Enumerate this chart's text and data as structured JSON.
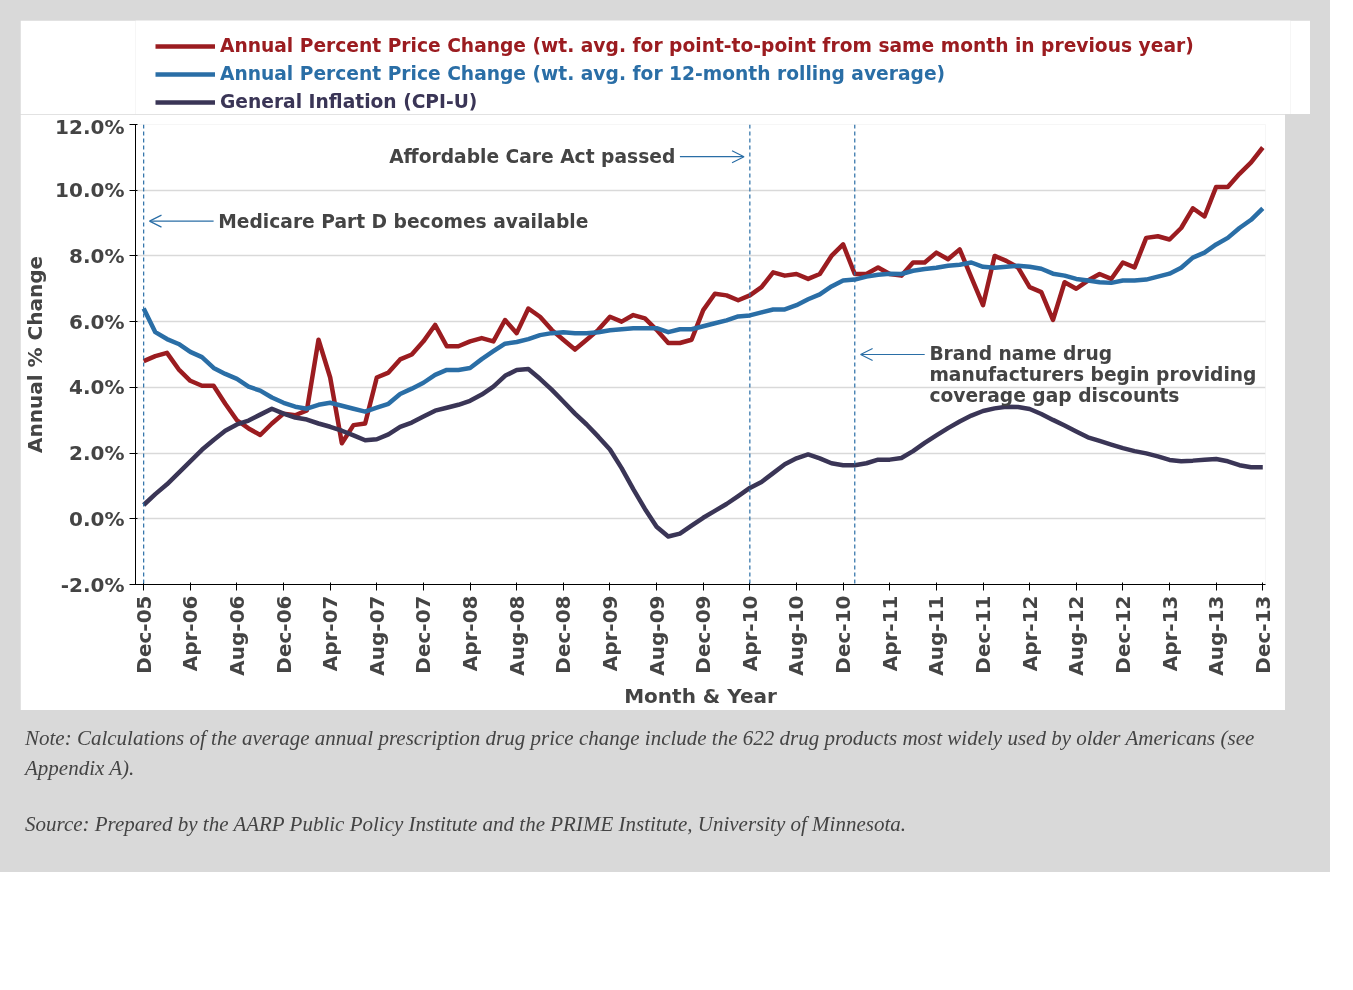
{
  "chart_data": {
    "type": "line",
    "xlabel": "Month & Year",
    "ylabel": "Annual % Change",
    "x": [
      "2005-12",
      "2006-01",
      "2006-02",
      "2006-03",
      "2006-04",
      "2006-05",
      "2006-06",
      "2006-07",
      "2006-08",
      "2006-09",
      "2006-10",
      "2006-11",
      "2006-12",
      "2007-01",
      "2007-02",
      "2007-03",
      "2007-04",
      "2007-05",
      "2007-06",
      "2007-07",
      "2007-08",
      "2007-09",
      "2007-10",
      "2007-11",
      "2007-12",
      "2008-01",
      "2008-02",
      "2008-03",
      "2008-04",
      "2008-05",
      "2008-06",
      "2008-07",
      "2008-08",
      "2008-09",
      "2008-10",
      "2008-11",
      "2008-12",
      "2009-01",
      "2009-02",
      "2009-03",
      "2009-04",
      "2009-05",
      "2009-06",
      "2009-07",
      "2009-08",
      "2009-09",
      "2009-10",
      "2009-11",
      "2009-12",
      "2010-01",
      "2010-02",
      "2010-03",
      "2010-04",
      "2010-05",
      "2010-06",
      "2010-07",
      "2010-08",
      "2010-09",
      "2010-10",
      "2010-11",
      "2010-12",
      "2011-01",
      "2011-02",
      "2011-03",
      "2011-04",
      "2011-05",
      "2011-06",
      "2011-07",
      "2011-08",
      "2011-09",
      "2011-10",
      "2011-11",
      "2011-12",
      "2012-01",
      "2012-02",
      "2012-03",
      "2012-04",
      "2012-05",
      "2012-06",
      "2012-07",
      "2012-08",
      "2012-09",
      "2012-10",
      "2012-11",
      "2012-12",
      "2013-01",
      "2013-02",
      "2013-03",
      "2013-04",
      "2013-05",
      "2013-06",
      "2013-07",
      "2013-08",
      "2013-09",
      "2013-10",
      "2013-11",
      "2013-12"
    ],
    "series": [
      {
        "name": "Annual Percent Price Change (wt. avg. for point-to-point from same month in previous year)",
        "color": "#9b1c20",
        "values": [
          4.8,
          4.95,
          5.05,
          4.55,
          4.2,
          4.05,
          4.05,
          3.5,
          3.0,
          2.75,
          2.55,
          2.9,
          3.2,
          3.15,
          3.3,
          5.45,
          4.3,
          2.3,
          2.85,
          2.9,
          4.3,
          4.45,
          4.85,
          5.0,
          5.4,
          5.9,
          5.25,
          5.25,
          5.4,
          5.5,
          5.4,
          6.05,
          5.65,
          6.4,
          6.15,
          5.75,
          5.45,
          5.15,
          5.45,
          5.75,
          6.15,
          6.0,
          6.2,
          6.1,
          5.75,
          5.35,
          5.35,
          5.45,
          6.35,
          6.85,
          6.8,
          6.65,
          6.8,
          7.05,
          7.5,
          7.4,
          7.45,
          7.3,
          7.45,
          8.0,
          8.35,
          7.45,
          7.45,
          7.65,
          7.45,
          7.4,
          7.8,
          7.8,
          8.1,
          7.9,
          8.2,
          7.35,
          6.5,
          8.0,
          7.85,
          7.65,
          7.05,
          6.9,
          6.05,
          7.2,
          7.0,
          7.25,
          7.45,
          7.3,
          7.8,
          7.65,
          8.55,
          8.6,
          8.5,
          8.85,
          9.45,
          9.2,
          10.1,
          10.1,
          10.5,
          10.85,
          11.3
        ]
      },
      {
        "name": "Annual Percent Price Change (wt. avg. for 12-month rolling average)",
        "color": "#2a6ea6",
        "values": [
          6.4,
          5.68,
          5.47,
          5.32,
          5.08,
          4.92,
          4.59,
          4.41,
          4.26,
          4.02,
          3.9,
          3.69,
          3.53,
          3.41,
          3.35,
          3.47,
          3.53,
          3.44,
          3.35,
          3.26,
          3.38,
          3.5,
          3.8,
          3.96,
          4.14,
          4.38,
          4.53,
          4.53,
          4.59,
          4.86,
          5.1,
          5.33,
          5.38,
          5.47,
          5.59,
          5.65,
          5.68,
          5.65,
          5.65,
          5.68,
          5.74,
          5.77,
          5.8,
          5.8,
          5.8,
          5.68,
          5.77,
          5.77,
          5.86,
          5.95,
          6.04,
          6.16,
          6.19,
          6.28,
          6.37,
          6.37,
          6.5,
          6.68,
          6.83,
          7.07,
          7.25,
          7.28,
          7.37,
          7.43,
          7.46,
          7.45,
          7.55,
          7.6,
          7.64,
          7.7,
          7.73,
          7.8,
          7.67,
          7.64,
          7.67,
          7.7,
          7.67,
          7.61,
          7.46,
          7.4,
          7.3,
          7.25,
          7.2,
          7.18,
          7.25,
          7.25,
          7.28,
          7.37,
          7.46,
          7.64,
          7.95,
          8.1,
          8.35,
          8.55,
          8.85,
          9.1,
          9.45
        ]
      },
      {
        "name": "General Inflation (CPI-U)",
        "color": "#3a3556",
        "values": [
          0.42,
          0.75,
          1.05,
          1.4,
          1.75,
          2.1,
          2.4,
          2.68,
          2.87,
          2.99,
          3.17,
          3.35,
          3.2,
          3.08,
          3.02,
          2.9,
          2.8,
          2.68,
          2.54,
          2.39,
          2.42,
          2.57,
          2.8,
          2.93,
          3.11,
          3.29,
          3.38,
          3.47,
          3.59,
          3.78,
          4.02,
          4.35,
          4.53,
          4.56,
          4.26,
          3.93,
          3.57,
          3.2,
          2.87,
          2.5,
          2.11,
          1.54,
          0.9,
          0.3,
          -0.24,
          -0.54,
          -0.45,
          -0.21,
          0.03,
          0.24,
          0.45,
          0.69,
          0.94,
          1.12,
          1.39,
          1.66,
          1.84,
          1.96,
          1.84,
          1.69,
          1.63,
          1.63,
          1.69,
          1.8,
          1.8,
          1.85,
          2.06,
          2.31,
          2.54,
          2.76,
          2.96,
          3.14,
          3.28,
          3.36,
          3.41,
          3.4,
          3.34,
          3.19,
          3.01,
          2.84,
          2.66,
          2.48,
          2.37,
          2.26,
          2.15,
          2.06,
          1.99,
          1.9,
          1.79,
          1.75,
          1.77,
          1.8,
          1.82,
          1.75,
          1.63,
          1.57,
          1.57
        ]
      }
    ],
    "xlim": [
      "2005-11-10",
      "2013-12-08"
    ],
    "xticks": [
      {
        "value": "2005-12",
        "label": "Dec-05"
      },
      {
        "value": "2006-04",
        "label": "Apr-06"
      },
      {
        "value": "2006-08",
        "label": "Aug-06"
      },
      {
        "value": "2006-12",
        "label": "Dec-06"
      },
      {
        "value": "2007-04",
        "label": "Apr-07"
      },
      {
        "value": "2007-08",
        "label": "Aug-07"
      },
      {
        "value": "2007-12",
        "label": "Dec-07"
      },
      {
        "value": "2008-04",
        "label": "Apr-08"
      },
      {
        "value": "2008-08",
        "label": "Aug-08"
      },
      {
        "value": "2008-12",
        "label": "Dec-08"
      },
      {
        "value": "2009-04",
        "label": "Apr-09"
      },
      {
        "value": "2009-08",
        "label": "Aug-09"
      },
      {
        "value": "2009-12",
        "label": "Dec-09"
      },
      {
        "value": "2010-04",
        "label": "Apr-10"
      },
      {
        "value": "2010-08",
        "label": "Aug-10"
      },
      {
        "value": "2010-12",
        "label": "Dec-10"
      },
      {
        "value": "2011-04",
        "label": "Apr-11"
      },
      {
        "value": "2011-08",
        "label": "Aug-11"
      },
      {
        "value": "2011-12",
        "label": "Dec-11"
      },
      {
        "value": "2012-04",
        "label": "Apr-12"
      },
      {
        "value": "2012-08",
        "label": "Aug-12"
      },
      {
        "value": "2012-12",
        "label": "Dec-12"
      },
      {
        "value": "2013-04",
        "label": "Apr-13"
      },
      {
        "value": "2013-08",
        "label": "Aug-13"
      },
      {
        "value": "2013-12",
        "label": "Dec-13"
      }
    ],
    "ylim": [
      -2,
      12
    ],
    "yticks": [
      {
        "value": -2,
        "label": "-2.0%"
      },
      {
        "value": 0,
        "label": "0.0%"
      },
      {
        "value": 2,
        "label": "2.0%"
      },
      {
        "value": 4,
        "label": "4.0%"
      },
      {
        "value": 6,
        "label": "6.0%"
      },
      {
        "value": 8,
        "label": "8.0%"
      },
      {
        "value": 10,
        "label": "10.0%"
      },
      {
        "value": 12,
        "label": "12.0%"
      }
    ],
    "grid": "y",
    "legend": "top left",
    "line_style": "solid",
    "marker": "none",
    "ref_lines": [
      {
        "axis": "x",
        "value": "2005-12",
        "color": "#2a6ea6",
        "line_style": "dashed",
        "label": "Medicare Part D becomes available"
      },
      {
        "axis": "x",
        "value": "2010-04",
        "color": "#2a6ea6",
        "line_style": "dashed",
        "label": "Affordable Care Act passed"
      },
      {
        "axis": "x",
        "value": "2011-01",
        "color": "#2a6ea6",
        "line_style": "dashed",
        "label": "Brand name drug\nmanufacturers begin providing\ncoverage gap discounts"
      }
    ],
    "annotations": [
      "Note: Calculations of the average annual prescription drug price change include the 622 drug products most widely used by older Americans (see Appendix A).",
      "Source: Prepared by the AARP Public Policy Institute and the PRIME Institute, University of Minnesota."
    ]
  }
}
